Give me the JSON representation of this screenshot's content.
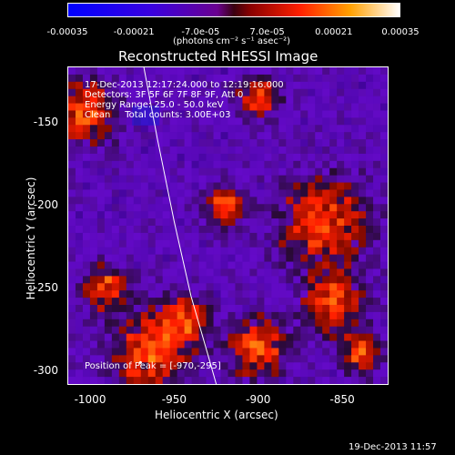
{
  "chart_data": {
    "type": "heatmap",
    "title": "Reconstructed RHESSI Image",
    "xlabel": "Heliocentric X (arcsec)",
    "ylabel": "Heliocentric Y (arcsec)",
    "xlim": [
      -1013,
      -823
    ],
    "ylim": [
      -308,
      -117
    ],
    "x_ticks": [
      "-1000",
      "-950",
      "-900",
      "-850"
    ],
    "x_tick_values": [
      -1000,
      -950,
      -900,
      -850
    ],
    "y_ticks": [
      "-150",
      "-200",
      "-250",
      "-300"
    ],
    "y_tick_values": [
      -150,
      -200,
      -250,
      -300
    ],
    "colorbar": {
      "label": "(photons cm⁻² s⁻¹ asec⁻²)",
      "ticks": [
        "-0.00035",
        "-0.00021",
        "-7.0e-05",
        "7.0e-05",
        "0.00021",
        "0.00035"
      ],
      "tick_values": [
        -0.00035,
        -0.00021,
        -7e-05,
        7e-05,
        0.00021,
        0.00035
      ],
      "range": [
        -0.00035,
        0.00035
      ]
    },
    "annotations": [
      "17-Dec-2013 12:17:24.000 to 12:19:16.000",
      "Detectors: 3F 5F 6F 7F 8F 9F, Att 0",
      "Energy Range: 25.0 - 50.0 keV",
      "Clean     Total counts: 3.00E+03"
    ],
    "peak_label": "Position of Peak = [-970,-295]",
    "peak": [
      -970,
      -295
    ],
    "limb_curve": [
      [
        -968,
        -117
      ],
      [
        -960,
        -160
      ],
      [
        -950,
        -210
      ],
      [
        -940,
        -255
      ],
      [
        -930,
        -290
      ],
      [
        -925,
        -308
      ]
    ],
    "hot_regions": [
      {
        "x": -1005,
        "y": -145,
        "r": 14
      },
      {
        "x": -965,
        "y": -290,
        "r": 16
      },
      {
        "x": -945,
        "y": -270,
        "r": 10
      },
      {
        "x": -990,
        "y": -250,
        "r": 9
      },
      {
        "x": -860,
        "y": -210,
        "r": 18
      },
      {
        "x": -855,
        "y": -260,
        "r": 12
      },
      {
        "x": -900,
        "y": -285,
        "r": 12
      },
      {
        "x": -920,
        "y": -200,
        "r": 8
      },
      {
        "x": -900,
        "y": -135,
        "r": 8
      },
      {
        "x": -840,
        "y": -290,
        "r": 8
      }
    ]
  },
  "footer": {
    "timestamp": "19-Dec-2013 11:57"
  }
}
